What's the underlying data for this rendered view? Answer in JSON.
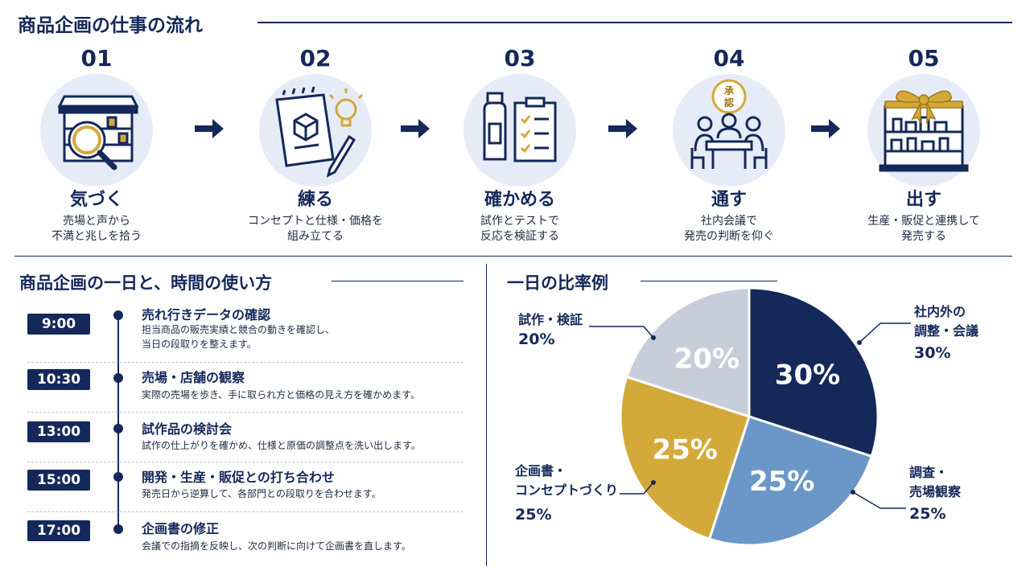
{
  "flow": {
    "title": "商品企画の仕事の流れ",
    "steps": [
      {
        "num": "01",
        "title": "気づく",
        "desc1": "売場と声から",
        "desc2": "不満と兆しを拾う",
        "icon": "store-magnifier-icon"
      },
      {
        "num": "02",
        "title": "練る",
        "desc1": "コンセプトと仕様・価格を",
        "desc2": "組み立てる",
        "icon": "notebook-lightbulb-icon"
      },
      {
        "num": "03",
        "title": "確かめる",
        "desc1": "試作とテストで",
        "desc2": "反応を検証する",
        "icon": "bottle-checklist-icon"
      },
      {
        "num": "04",
        "title": "通す",
        "desc1": "社内会議で",
        "desc2": "発売の判断を仰ぐ",
        "icon": "meeting-approval-icon",
        "stamp": "承認"
      },
      {
        "num": "05",
        "title": "出す",
        "desc1": "生産・販促と連携して",
        "desc2": "発売する",
        "icon": "gift-shelf-icon"
      }
    ]
  },
  "schedule": {
    "title": "商品企画の一日と、時間の使い方",
    "items": [
      {
        "time": "9:00",
        "title": "売れ行きデータの確認",
        "desc1": "担当商品の販売実績と競合の動きを確認し、",
        "desc2": "当日の段取りを整えます。"
      },
      {
        "time": "10:30",
        "title": "売場・店舗の観察",
        "desc1": "実際の売場を歩き、手に取られ方と価格の見え方を確かめます。",
        "desc2": ""
      },
      {
        "time": "13:00",
        "title": "試作品の検討会",
        "desc1": "試作の仕上がりを確かめ、仕様と原価の調整点を洗い出します。",
        "desc2": ""
      },
      {
        "time": "15:00",
        "title": "開発・生産・販促との打ち合わせ",
        "desc1": "発売日から逆算して、各部門との段取りを合わせます。",
        "desc2": ""
      },
      {
        "time": "17:00",
        "title": "企画書の修正",
        "desc1": "会議での指摘を反映し、次の判断に向けて企画書を直します。",
        "desc2": ""
      }
    ]
  },
  "ratio": {
    "title": "一日の比率例"
  },
  "colors": {
    "navy": "#14285a",
    "blue": "#6b97c8",
    "gold": "#d3a93a",
    "gray": "#c8ced9",
    "circle_bg": "#e6ecf7"
  },
  "chart_data": {
    "type": "pie",
    "slices": [
      {
        "label_line1": "社内外の",
        "label_line2": "調整・会議",
        "value": 30,
        "value_label": "30%",
        "color": "#14285a"
      },
      {
        "label_line1": "調査・",
        "label_line2": "売場観察",
        "value": 25,
        "value_label": "25%",
        "color": "#6b97c8"
      },
      {
        "label_line1": "企画書・",
        "label_line2": "コンセプトづくり",
        "value": 25,
        "value_label": "25%",
        "color": "#d3a93a"
      },
      {
        "label_line1": "試作・検証",
        "label_line2": "",
        "value": 20,
        "value_label": "20%",
        "color": "#c8ced9"
      }
    ]
  }
}
